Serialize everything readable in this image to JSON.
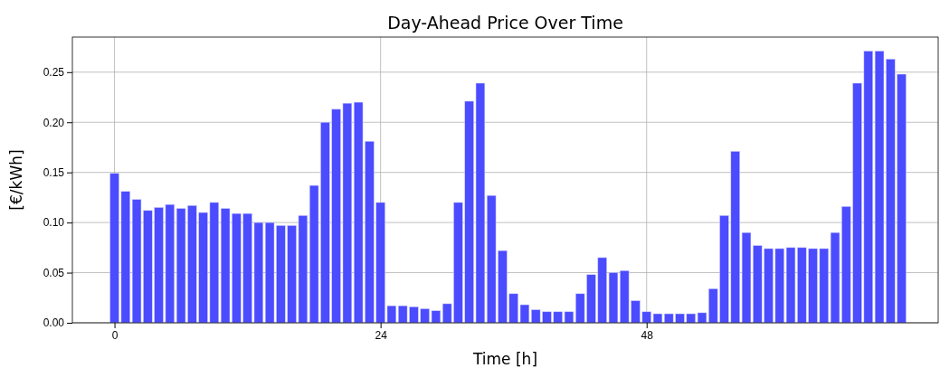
{
  "chart_data": {
    "type": "bar",
    "title": "Day-Ahead Price Over Time",
    "xlabel": "Time [h]",
    "ylabel": "[€/kWh]",
    "x": [
      0,
      1,
      2,
      3,
      4,
      5,
      6,
      7,
      8,
      9,
      10,
      11,
      12,
      13,
      14,
      15,
      16,
      17,
      18,
      19,
      20,
      21,
      22,
      23,
      24,
      25,
      26,
      27,
      28,
      29,
      30,
      31,
      32,
      33,
      34,
      35,
      36,
      37,
      38,
      39,
      40,
      41,
      42,
      43,
      44,
      45,
      46,
      47,
      48,
      49,
      50,
      51,
      52,
      53,
      54,
      55,
      56,
      57,
      58,
      59,
      60,
      61,
      62,
      63,
      64,
      65,
      66,
      67,
      68,
      69,
      70,
      71
    ],
    "values": [
      0.149,
      0.131,
      0.123,
      0.112,
      0.115,
      0.118,
      0.114,
      0.117,
      0.11,
      0.12,
      0.114,
      0.109,
      0.109,
      0.1,
      0.1,
      0.097,
      0.097,
      0.107,
      0.137,
      0.2,
      0.213,
      0.219,
      0.22,
      0.181,
      0.12,
      0.017,
      0.017,
      0.016,
      0.014,
      0.012,
      0.019,
      0.12,
      0.221,
      0.239,
      0.127,
      0.072,
      0.029,
      0.018,
      0.013,
      0.011,
      0.011,
      0.011,
      0.029,
      0.048,
      0.065,
      0.05,
      0.052,
      0.022,
      0.011,
      0.009,
      0.009,
      0.009,
      0.009,
      0.01,
      0.034,
      0.107,
      0.171,
      0.09,
      0.077,
      0.074,
      0.074,
      0.075,
      0.075,
      0.074,
      0.074,
      0.09,
      0.116,
      0.239,
      0.271,
      0.271,
      0.263,
      0.248
    ],
    "color": "#4b4bff",
    "xlim": [
      -3.8,
      74.3
    ],
    "xticks": [
      0,
      24,
      48
    ],
    "ylim": [
      0,
      0.285
    ],
    "yticks": [
      {
        "value": 0,
        "label": "0.00"
      },
      {
        "value": 0.05,
        "label": "0.05"
      },
      {
        "value": 0.1,
        "label": "0.10"
      },
      {
        "value": 0.15,
        "label": "0.15"
      },
      {
        "value": 0.2,
        "label": "0.20"
      },
      {
        "value": 0.25,
        "label": "0.25"
      }
    ],
    "grid": true
  }
}
